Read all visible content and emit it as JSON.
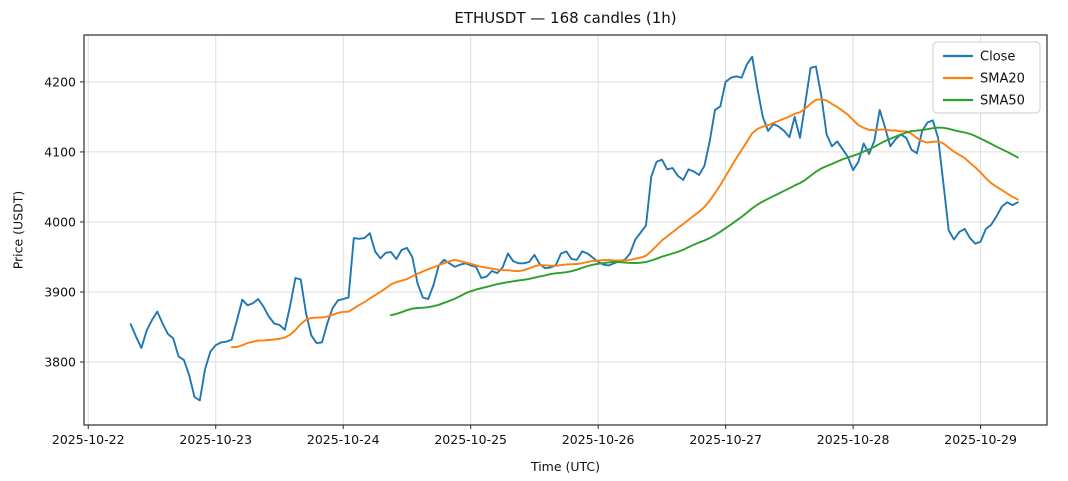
{
  "figure": {
    "title": "ETHUSDT — 168 candles (1h)",
    "xlabel": "Time (UTC)",
    "ylabel": "Price (USDT)",
    "background": "#ffffff"
  },
  "legend": {
    "position": "upper right",
    "items": [
      {
        "label": "Close",
        "color": "#1f77b4"
      },
      {
        "label": "SMA20",
        "color": "#ff7f0e"
      },
      {
        "label": "SMA50",
        "color": "#2ca02c"
      }
    ]
  },
  "chart_data": {
    "type": "line",
    "title": "ETHUSDT — 168 candles (1h)",
    "xlabel": "Time (UTC)",
    "ylabel": "Price (USDT)",
    "symbol": "ETHUSDT",
    "interval": "1h",
    "n_candles": 168,
    "x_start": "2025-10-22 08:00",
    "x_end": "2025-10-29 07:00",
    "x_tick_labels": [
      "2025-10-22",
      "2025-10-23",
      "2025-10-24",
      "2025-10-25",
      "2025-10-26",
      "2025-10-27",
      "2025-10-28",
      "2025-10-29"
    ],
    "x_tick_hour_offsets": [
      -8,
      16,
      40,
      64,
      88,
      112,
      136,
      160
    ],
    "xlim_hours": [
      -8.8,
      172.5
    ],
    "y_ticks": [
      3800,
      3900,
      4000,
      4100,
      4200
    ],
    "ylim": [
      3710,
      4267
    ],
    "grid": true,
    "grid_color": "#dedede",
    "spine_color": "#2b2b2b",
    "legend_position": "upper right",
    "series": [
      {
        "name": "Close",
        "color": "#1f77b4",
        "line_width": 1.9,
        "values": [
          3854,
          3836,
          3820,
          3845,
          3860,
          3872,
          3855,
          3840,
          3834,
          3808,
          3803,
          3781,
          3750,
          3745,
          3790,
          3815,
          3824,
          3828,
          3829,
          3832,
          3860,
          3889,
          3881,
          3884,
          3890,
          3879,
          3865,
          3855,
          3853,
          3846,
          3880,
          3920,
          3918,
          3870,
          3838,
          3827,
          3828,
          3855,
          3877,
          3888,
          3890,
          3892,
          3977,
          3976,
          3977,
          3984,
          3958,
          3948,
          3956,
          3957,
          3947,
          3960,
          3963,
          3950,
          3912,
          3892,
          3890,
          3910,
          3938,
          3946,
          3941,
          3936,
          3939,
          3941,
          3938,
          3936,
          3920,
          3922,
          3930,
          3927,
          3935,
          3955,
          3944,
          3941,
          3941,
          3943,
          3953,
          3940,
          3934,
          3935,
          3938,
          3955,
          3958,
          3947,
          3946,
          3958,
          3955,
          3949,
          3943,
          3939,
          3938,
          3941,
          3944,
          3946,
          3955,
          3975,
          3985,
          3995,
          4065,
          4086,
          4089,
          4075,
          4077,
          4066,
          4060,
          4075,
          4072,
          4067,
          4080,
          4115,
          4160,
          4165,
          4200,
          4206,
          4208,
          4206,
          4225,
          4236,
          4190,
          4150,
          4130,
          4140,
          4136,
          4130,
          4121,
          4150,
          4120,
          4170,
          4220,
          4222,
          4180,
          4125,
          4108,
          4115,
          4104,
          4093,
          4074,
          4086,
          4112,
          4097,
          4116,
          4160,
          4135,
          4108,
          4118,
          4125,
          4120,
          4103,
          4098,
          4130,
          4142,
          4145,
          4120,
          4055,
          3988,
          3975,
          3986,
          3990,
          3977,
          3969,
          3972,
          3990,
          3996,
          4008,
          4022,
          4028,
          4024,
          4028
        ]
      },
      {
        "name": "SMA20",
        "color": "#ff7f0e",
        "line_width": 1.9,
        "derived": "sma",
        "window": 20,
        "source": "Close"
      },
      {
        "name": "SMA50",
        "color": "#2ca02c",
        "line_width": 1.9,
        "derived": "sma",
        "window": 50,
        "source": "Close"
      }
    ]
  }
}
